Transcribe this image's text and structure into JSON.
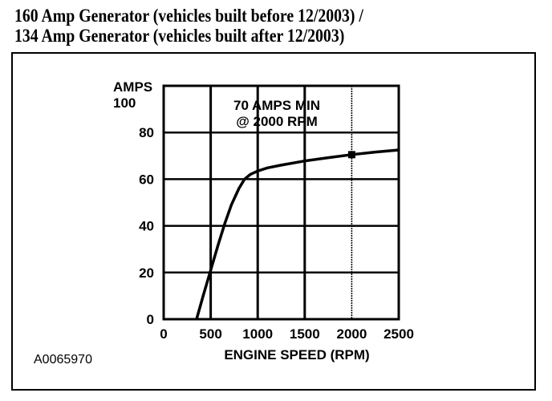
{
  "title_lines": [
    "160 Amp Generator (vehicles built before 12/2003) /",
    "134 Amp Generator (vehicles built after 12/2003)"
  ],
  "figure_id": "A0065970",
  "chart_data": {
    "type": "line",
    "xlabel": "ENGINE SPEED (RPM)",
    "ylabel": "AMPS",
    "xlim": [
      0,
      2500
    ],
    "ylim": [
      0,
      100
    ],
    "x_ticks": [
      0,
      500,
      1000,
      1500,
      2000,
      2500
    ],
    "y_ticks": [
      0,
      20,
      40,
      60,
      80,
      100
    ],
    "grid": true,
    "annotation": [
      "70 AMPS MIN",
      "@ 2000 RPM"
    ],
    "series": [
      {
        "x": [
          350,
          420,
          500,
          580,
          650,
          720,
          800,
          860,
          920,
          1000,
          1100,
          1250,
          1500,
          1750,
          2000,
          2250,
          2500
        ],
        "y": [
          0,
          10,
          21,
          32,
          41,
          49,
          56,
          60,
          62,
          63.5,
          64.8,
          66,
          67.8,
          69.2,
          70.5,
          71.6,
          72.5
        ]
      }
    ],
    "marker": {
      "x": 2000,
      "y": 70.5
    }
  }
}
